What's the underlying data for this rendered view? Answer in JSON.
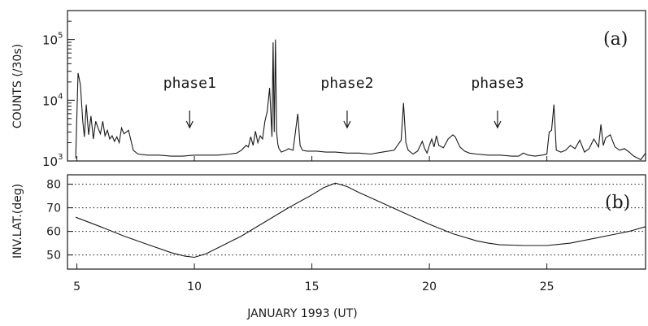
{
  "colors": {
    "ink": "#1a1a1a",
    "background": "#ffffff"
  },
  "xaxis": {
    "label": "JANUARY 1993 (UT)",
    "range": [
      4.6,
      29.2
    ],
    "ticks": [
      5,
      10,
      15,
      20,
      25
    ],
    "tick_labels": [
      "5",
      "10",
      "15",
      "20",
      "25"
    ]
  },
  "chart_data": [
    {
      "type": "line",
      "panel_label": "(a)",
      "ylabel": "COUNTS (/30s)",
      "yscale": "log",
      "ylim": [
        1000,
        300000
      ],
      "ytick_values": [
        1000,
        10000,
        100000
      ],
      "ytick_labels": [
        {
          "base": "10",
          "exp": "3"
        },
        {
          "base": "10",
          "exp": "4"
        },
        {
          "base": "10",
          "exp": "5"
        }
      ],
      "annotations": [
        {
          "text": "phase1",
          "x": 9.8,
          "arrow": true
        },
        {
          "text": "phase2",
          "x": 16.5,
          "arrow": true
        },
        {
          "text": "phase3",
          "x": 22.9,
          "arrow": true
        }
      ],
      "x": [
        4.95,
        5.05,
        5.15,
        5.25,
        5.32,
        5.4,
        5.5,
        5.6,
        5.7,
        5.8,
        5.9,
        6.0,
        6.1,
        6.2,
        6.3,
        6.4,
        6.5,
        6.6,
        6.7,
        6.8,
        6.9,
        7.0,
        7.2,
        7.4,
        7.6,
        8.0,
        8.5,
        9.0,
        9.5,
        10.0,
        10.5,
        11.0,
        11.5,
        11.8,
        12.0,
        12.2,
        12.3,
        12.4,
        12.5,
        12.6,
        12.7,
        12.8,
        12.9,
        13.0,
        13.1,
        13.2,
        13.3,
        13.35,
        13.4,
        13.45,
        13.5,
        13.55,
        13.6,
        13.7,
        13.8,
        13.9,
        14.0,
        14.2,
        14.4,
        14.5,
        14.6,
        14.8,
        15.2,
        15.6,
        16.0,
        16.5,
        17.0,
        17.5,
        18.0,
        18.5,
        18.8,
        18.9,
        19.0,
        19.1,
        19.3,
        19.5,
        19.7,
        19.8,
        19.9,
        20.0,
        20.1,
        20.2,
        20.3,
        20.4,
        20.6,
        20.8,
        21.0,
        21.1,
        21.3,
        21.5,
        21.7,
        22.0,
        22.5,
        23.0,
        23.5,
        23.8,
        24.0,
        24.2,
        24.5,
        24.8,
        25.0,
        25.1,
        25.2,
        25.3,
        25.4,
        25.6,
        25.8,
        26.0,
        26.2,
        26.4,
        26.6,
        26.8,
        27.0,
        27.2,
        27.3,
        27.4,
        27.5,
        27.7,
        27.9,
        28.1,
        28.3,
        28.5,
        28.7,
        29.0,
        29.2
      ],
      "y": [
        1100,
        28000,
        18000,
        4500,
        2500,
        8500,
        2700,
        5500,
        2300,
        4500,
        3500,
        2800,
        4500,
        2600,
        3200,
        2300,
        2600,
        2100,
        2500,
        2000,
        3500,
        2800,
        3200,
        1500,
        1300,
        1250,
        1250,
        1200,
        1200,
        1250,
        1250,
        1250,
        1300,
        1350,
        1500,
        1800,
        1700,
        2500,
        1800,
        3100,
        2000,
        2600,
        2300,
        4500,
        6500,
        16000,
        2500,
        90000,
        3000,
        100000,
        3000,
        1900,
        1600,
        1400,
        1450,
        1500,
        1600,
        1500,
        6000,
        1800,
        1500,
        1450,
        1450,
        1400,
        1400,
        1350,
        1350,
        1300,
        1400,
        1500,
        2200,
        9000,
        2000,
        1500,
        1300,
        1450,
        2100,
        1600,
        1350,
        1800,
        2300,
        1700,
        2600,
        1800,
        1650,
        2300,
        2700,
        2500,
        1700,
        1450,
        1350,
        1300,
        1250,
        1250,
        1200,
        1200,
        1350,
        1250,
        1200,
        1250,
        1300,
        3000,
        3200,
        8500,
        1500,
        1400,
        1500,
        1800,
        1600,
        2200,
        1400,
        1600,
        2300,
        1700,
        4000,
        1800,
        2400,
        2700,
        1700,
        1500,
        1600,
        1400,
        1200,
        1050,
        1350
      ]
    },
    {
      "type": "line",
      "panel_label": "(b)",
      "ylabel": "INV.LAT.(deg)",
      "ylim": [
        44,
        84
      ],
      "yticks": [
        50,
        60,
        70,
        80
      ],
      "ytick_labels": [
        "50",
        "60",
        "70",
        "80"
      ],
      "grid": "horizontal-dotted",
      "x": [
        4.95,
        6.0,
        7.0,
        8.0,
        9.0,
        9.6,
        10.0,
        10.5,
        11.0,
        12.0,
        13.0,
        14.0,
        15.0,
        15.5,
        16.0,
        16.5,
        17.0,
        18.0,
        19.0,
        20.0,
        21.0,
        22.0,
        22.5,
        23.0,
        24.0,
        25.0,
        25.5,
        26.0,
        27.0,
        28.0,
        28.5,
        29.2
      ],
      "y": [
        66,
        62,
        58,
        54.5,
        51,
        49.5,
        49,
        50.5,
        53,
        58,
        64,
        70,
        75.5,
        78.5,
        80.5,
        79,
        76.5,
        72,
        67.5,
        63,
        59,
        56,
        55,
        54.3,
        54,
        54,
        54.5,
        55,
        57,
        59,
        60,
        62
      ]
    }
  ]
}
